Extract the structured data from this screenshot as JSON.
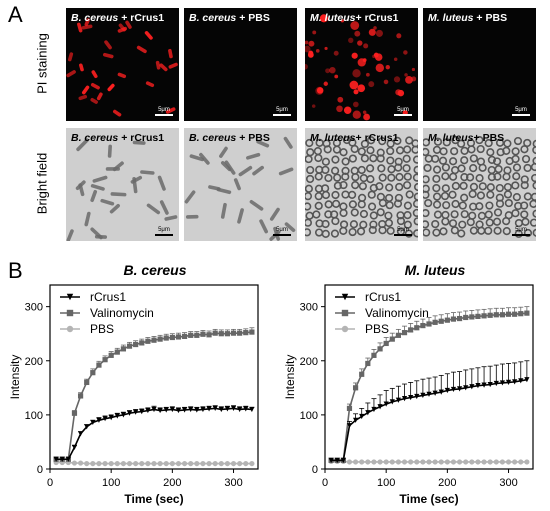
{
  "panel_a_label": "A",
  "panel_b_label": "B",
  "row_labels": [
    "PI staining",
    "Bright field"
  ],
  "images": [
    {
      "title_italic": "B. cereus",
      "title_rest": " + rCrus1",
      "scale": "5μm",
      "kind": "pi-rods"
    },
    {
      "title_italic": "B. cereus",
      "title_rest": " + PBS",
      "scale": "5μm",
      "kind": "pi-empty"
    },
    {
      "title_italic": "M. luteus",
      "title_rest": "+ rCrus1",
      "scale": "5μm",
      "kind": "pi-cocci"
    },
    {
      "title_italic": "M. luteus",
      "title_rest": " + PBS",
      "scale": "5μm",
      "kind": "pi-empty"
    },
    {
      "title_italic": "B. cereus",
      "title_rest": " + rCrus1",
      "scale": "5μm",
      "kind": "bf-rods"
    },
    {
      "title_italic": "B. cereus",
      "title_rest": " + PBS",
      "scale": "5μm",
      "kind": "bf-rods"
    },
    {
      "title_italic": "M. luteus",
      "title_rest": "+ rCrus1",
      "scale": "5μm",
      "kind": "bf-cocci"
    },
    {
      "title_italic": "M. luteus",
      "title_rest": "+ PBS",
      "scale": "5μm",
      "kind": "bf-cocci"
    }
  ],
  "colors": {
    "rCrus1": "#000000",
    "Valinomycin": "#666666",
    "PBS": "#b4b4b4",
    "pi_stain": "#ff2020"
  },
  "chart_data": [
    {
      "type": "line",
      "title": "B. cereus",
      "xlabel": "Time (sec)",
      "ylabel": "Intensity",
      "xlim": [
        0,
        340
      ],
      "ylim": [
        0,
        340
      ],
      "xticks": [
        0,
        100,
        200,
        300
      ],
      "yticks": [
        0,
        100,
        200,
        300
      ],
      "legend_position": "top-left",
      "x": [
        10,
        20,
        30,
        40,
        50,
        60,
        70,
        80,
        90,
        100,
        110,
        120,
        130,
        140,
        150,
        160,
        170,
        180,
        190,
        200,
        210,
        220,
        230,
        240,
        250,
        260,
        270,
        280,
        290,
        300,
        310,
        320,
        330
      ],
      "series": [
        {
          "name": "rCrus1",
          "marker": "triangle-down",
          "values": [
            18,
            18,
            18,
            40,
            65,
            78,
            86,
            90,
            93,
            95,
            98,
            100,
            103,
            105,
            106,
            108,
            110,
            108,
            109,
            110,
            108,
            109,
            110,
            109,
            110,
            111,
            112,
            110,
            111,
            112,
            110,
            111,
            110
          ],
          "error": [
            0,
            0,
            0,
            3,
            4,
            4,
            4,
            5,
            5,
            5,
            5,
            5,
            5,
            5,
            5,
            5,
            6,
            5,
            5,
            5,
            5,
            5,
            5,
            5,
            5,
            5,
            5,
            5,
            5,
            5,
            5,
            5,
            4
          ]
        },
        {
          "name": "Valinomycin",
          "marker": "square",
          "values": [
            18,
            18,
            18,
            103,
            135,
            160,
            178,
            192,
            202,
            210,
            216,
            222,
            227,
            230,
            233,
            236,
            238,
            240,
            242,
            243,
            244,
            245,
            247,
            247,
            249,
            248,
            251,
            250,
            250,
            251,
            251,
            252,
            253
          ],
          "error": [
            0,
            0,
            0,
            5,
            6,
            6,
            7,
            7,
            7,
            7,
            7,
            7,
            7,
            7,
            7,
            7,
            7,
            7,
            7,
            7,
            7,
            7,
            7,
            7,
            7,
            7,
            7,
            7,
            7,
            7,
            7,
            7,
            8
          ]
        },
        {
          "name": "PBS",
          "marker": "circle",
          "values": [
            12,
            12,
            12,
            11,
            11,
            10,
            10,
            10,
            10,
            10,
            10,
            10,
            10,
            10,
            10,
            10,
            10,
            10,
            10,
            10,
            10,
            10,
            10,
            10,
            10,
            10,
            10,
            10,
            10,
            10,
            10,
            10,
            10
          ],
          "error": [
            0,
            0,
            0,
            0,
            0,
            0,
            0,
            0,
            0,
            0,
            0,
            0,
            0,
            0,
            0,
            0,
            0,
            0,
            0,
            0,
            0,
            0,
            0,
            0,
            0,
            0,
            0,
            0,
            0,
            0,
            0,
            0,
            0
          ]
        }
      ]
    },
    {
      "type": "line",
      "title": "M. luteus",
      "xlabel": "Time (sec)",
      "ylabel": "Intensity",
      "xlim": [
        0,
        340
      ],
      "ylim": [
        0,
        340
      ],
      "xticks": [
        0,
        100,
        200,
        300
      ],
      "yticks": [
        0,
        100,
        200,
        300
      ],
      "legend_position": "top-left",
      "x": [
        10,
        20,
        30,
        40,
        50,
        60,
        70,
        80,
        90,
        100,
        110,
        120,
        130,
        140,
        150,
        160,
        170,
        180,
        190,
        200,
        210,
        220,
        230,
        240,
        250,
        260,
        270,
        280,
        290,
        300,
        310,
        320,
        330
      ],
      "series": [
        {
          "name": "rCrus1",
          "marker": "triangle-down",
          "values": [
            16,
            16,
            16,
            80,
            90,
            97,
            104,
            110,
            115,
            120,
            124,
            127,
            130,
            132,
            134,
            136,
            138,
            140,
            142,
            145,
            147,
            148,
            150,
            152,
            154,
            155,
            156,
            158,
            159,
            160,
            161,
            163,
            165
          ],
          "error": [
            0,
            0,
            0,
            8,
            12,
            15,
            18,
            20,
            22,
            25,
            25,
            26,
            27,
            28,
            29,
            30,
            30,
            30,
            31,
            31,
            32,
            32,
            33,
            33,
            33,
            34,
            34,
            34,
            35,
            35,
            35,
            35,
            35
          ]
        },
        {
          "name": "Valinomycin",
          "marker": "square",
          "values": [
            16,
            16,
            16,
            112,
            150,
            175,
            195,
            210,
            222,
            232,
            240,
            247,
            252,
            257,
            261,
            265,
            268,
            271,
            273,
            275,
            277,
            278,
            280,
            281,
            282,
            283,
            284,
            285,
            285,
            286,
            286,
            287,
            288
          ],
          "error": [
            0,
            0,
            0,
            8,
            9,
            10,
            10,
            11,
            11,
            11,
            11,
            11,
            12,
            12,
            12,
            12,
            12,
            12,
            12,
            12,
            12,
            12,
            12,
            12,
            12,
            12,
            12,
            12,
            12,
            12,
            12,
            12,
            12
          ]
        },
        {
          "name": "PBS",
          "marker": "circle",
          "values": [
            14,
            14,
            14,
            13,
            13,
            13,
            13,
            13,
            13,
            13,
            13,
            13,
            13,
            13,
            13,
            13,
            13,
            13,
            13,
            13,
            13,
            13,
            13,
            13,
            13,
            13,
            13,
            13,
            13,
            13,
            13,
            13,
            13
          ],
          "error": [
            0,
            0,
            0,
            0,
            0,
            0,
            0,
            0,
            0,
            0,
            0,
            0,
            0,
            0,
            0,
            0,
            0,
            0,
            0,
            0,
            0,
            0,
            0,
            0,
            0,
            0,
            0,
            0,
            0,
            0,
            0,
            0,
            0
          ]
        }
      ]
    }
  ]
}
